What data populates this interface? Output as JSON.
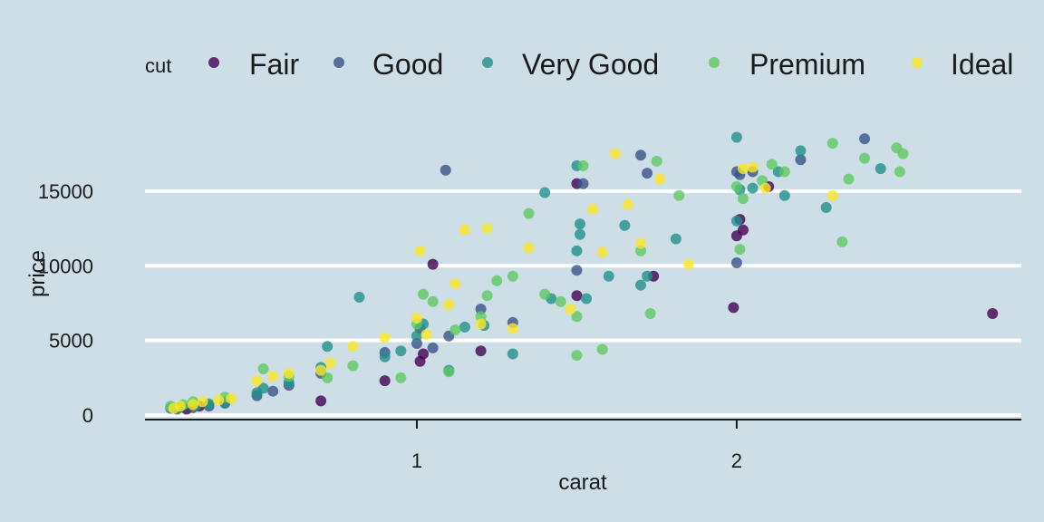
{
  "chart_data": {
    "type": "scatter",
    "title": "",
    "xlabel": "carat",
    "ylabel": "price",
    "xlim": [
      0.15,
      2.89
    ],
    "ylim": [
      -300,
      19300
    ],
    "x_ticks": [
      1,
      2
    ],
    "y_ticks": [
      0,
      5000,
      10000,
      15000
    ],
    "grid": "horizontal major lines only",
    "legend": {
      "title": "cut",
      "position": "top"
    },
    "background": "#cddee6",
    "series": [
      {
        "name": "Fair",
        "color": "#440154",
        "x": [
          0.28,
          0.32,
          0.7,
          0.9,
          1.01,
          1.02,
          1.05,
          1.2,
          1.5,
          1.5,
          1.74,
          1.99,
          2.0,
          2.01,
          2.02,
          2.1,
          2.8
        ],
        "y": [
          400,
          600,
          950,
          2300,
          3600,
          4100,
          10100,
          4300,
          15500,
          8000,
          9300,
          7200,
          12000,
          13100,
          12400,
          15300,
          6800
        ]
      },
      {
        "name": "Good",
        "color": "#3b528b",
        "x": [
          0.25,
          0.3,
          0.35,
          0.4,
          0.5,
          0.55,
          0.6,
          0.7,
          0.9,
          1.0,
          1.01,
          1.05,
          1.1,
          1.09,
          1.2,
          1.3,
          1.5,
          1.52,
          1.7,
          1.72,
          2.0,
          2.0,
          2.01,
          2.05,
          2.2,
          2.4
        ],
        "y": [
          400,
          500,
          600,
          800,
          1300,
          1600,
          2000,
          2800,
          4200,
          4800,
          5800,
          4500,
          5300,
          16400,
          7100,
          6200,
          9700,
          15500,
          17400,
          16200,
          16300,
          10200,
          16100,
          16300,
          17100,
          18500
        ]
      },
      {
        "name": "Very Good",
        "color": "#21908c",
        "x": [
          0.23,
          0.26,
          0.31,
          0.35,
          0.4,
          0.5,
          0.52,
          0.6,
          0.7,
          0.72,
          0.82,
          0.9,
          0.95,
          1.0,
          1.02,
          1.1,
          1.15,
          1.21,
          1.3,
          1.4,
          1.42,
          1.5,
          1.5,
          1.51,
          1.51,
          1.53,
          1.6,
          1.65,
          1.7,
          1.72,
          1.81,
          2.0,
          2.01,
          2.0,
          2.05,
          2.13,
          2.15,
          2.2,
          2.28,
          2.45
        ],
        "y": [
          450,
          550,
          650,
          750,
          850,
          1500,
          1800,
          2200,
          3200,
          4600,
          7900,
          3900,
          4300,
          5300,
          6100,
          3000,
          5900,
          6000,
          4100,
          14900,
          7800,
          16700,
          11000,
          12800,
          12100,
          7800,
          9300,
          12700,
          8700,
          9300,
          11800,
          18600,
          15100,
          13000,
          15200,
          16300,
          14700,
          17700,
          13900,
          16500
        ]
      },
      {
        "name": "Premium",
        "color": "#5ec962",
        "x": [
          0.23,
          0.27,
          0.3,
          0.4,
          0.52,
          0.6,
          0.72,
          0.8,
          0.95,
          1.0,
          1.02,
          1.05,
          1.1,
          1.12,
          1.2,
          1.22,
          1.25,
          1.3,
          1.35,
          1.4,
          1.45,
          1.5,
          1.52,
          1.5,
          1.58,
          1.7,
          1.73,
          1.75,
          1.82,
          2.0,
          2.01,
          2.02,
          2.08,
          2.11,
          2.15,
          2.3,
          2.33,
          2.35,
          2.4,
          2.5,
          2.51,
          2.52
        ],
        "y": [
          600,
          700,
          900,
          1200,
          3100,
          2600,
          2500,
          3300,
          2500,
          6100,
          8100,
          7600,
          2900,
          5700,
          6600,
          8000,
          9000,
          9300,
          13500,
          8100,
          7600,
          6600,
          16700,
          4000,
          4400,
          11000,
          6800,
          17000,
          14700,
          15300,
          11100,
          14500,
          15700,
          16800,
          16300,
          18200,
          11600,
          15800,
          17200,
          17900,
          16300,
          17500
        ]
      },
      {
        "name": "Ideal",
        "color": "#fde725",
        "x": [
          0.24,
          0.26,
          0.3,
          0.33,
          0.38,
          0.42,
          0.5,
          0.55,
          0.6,
          0.7,
          0.73,
          0.8,
          0.9,
          1.0,
          1.01,
          1.03,
          1.1,
          1.12,
          1.15,
          1.2,
          1.22,
          1.3,
          1.35,
          1.48,
          1.55,
          1.58,
          1.62,
          1.66,
          1.7,
          1.76,
          1.85,
          2.02,
          2.05,
          2.09,
          2.3
        ],
        "y": [
          450,
          600,
          700,
          900,
          1000,
          1100,
          2300,
          2600,
          2800,
          3000,
          3500,
          4600,
          5200,
          6500,
          11000,
          5400,
          7400,
          8800,
          12400,
          6100,
          12500,
          5800,
          11200,
          7100,
          13800,
          10900,
          17500,
          14100,
          11500,
          15800,
          10100,
          16500,
          16600,
          15200,
          14700
        ]
      }
    ]
  }
}
